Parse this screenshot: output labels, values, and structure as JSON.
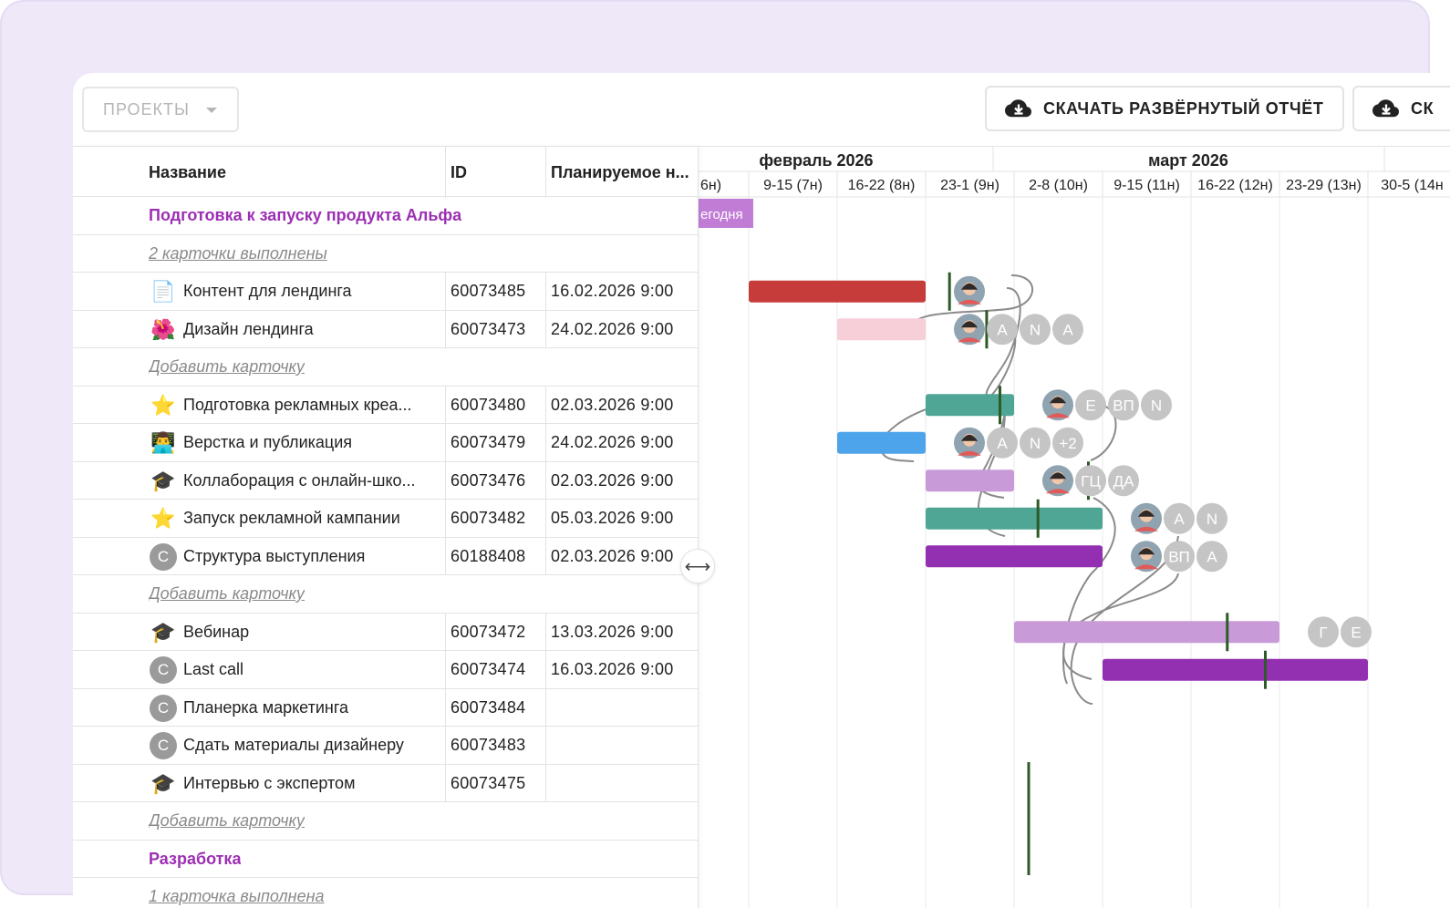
{
  "toolbar": {
    "projects_label": "ПРОЕКТЫ",
    "download_full_label": "СКАЧАТЬ РАЗВЁРНУТЫЙ ОТЧЁТ",
    "download_short_label": "СК"
  },
  "table": {
    "headers": {
      "name": "Название",
      "id": "ID",
      "planned": "Планируемое н..."
    },
    "group1_title": "Подготовка к запуску продукта Альфа",
    "group1_done": "2 карточки выполнены",
    "rows1": [
      {
        "icon": "document-icon",
        "glyph": "📄",
        "name": "Контент для лендинга",
        "id": "60073485",
        "date": "16.02.2026 9:00"
      },
      {
        "icon": "flower-icon",
        "glyph": "🌺",
        "name": "Дизайн лендинга",
        "id": "60073473",
        "date": "24.02.2026 9:00"
      }
    ],
    "add_card": "Добавить карточку",
    "rows2": [
      {
        "icon": "star-icon",
        "glyph": "⭐",
        "name": "Подготовка рекламных креа...",
        "id": "60073480",
        "date": "02.03.2026 9:00"
      },
      {
        "icon": "developer-icon",
        "glyph": "👨‍💻",
        "name": "Верстка и публикация",
        "id": "60073479",
        "date": "24.02.2026 9:00"
      },
      {
        "icon": "graduation-cap-icon",
        "glyph": "🎓",
        "name": "Коллаборация с онлайн-шко...",
        "id": "60073476",
        "date": "02.03.2026 9:00"
      },
      {
        "icon": "star-icon",
        "glyph": "⭐",
        "name": "Запуск рекламной кампании",
        "id": "60073482",
        "date": "05.03.2026 9:00"
      },
      {
        "icon": "letter-c-icon",
        "glyph": "C",
        "name": "Структура выступления",
        "id": "60188408",
        "date": "02.03.2026 9:00"
      }
    ],
    "rows3": [
      {
        "icon": "graduation-cap-icon",
        "glyph": "🎓",
        "name": "Вебинар",
        "id": "60073472",
        "date": "13.03.2026 9:00"
      },
      {
        "icon": "letter-c-icon",
        "glyph": "C",
        "name": "Last call",
        "id": "60073474",
        "date": "16.03.2026 9:00"
      },
      {
        "icon": "letter-c-icon",
        "glyph": "C",
        "name": "Планерка маркетинга",
        "id": "60073484",
        "date": ""
      },
      {
        "icon": "letter-c-icon",
        "glyph": "C",
        "name": "Сдать материалы дизайнеру",
        "id": "60073483",
        "date": ""
      },
      {
        "icon": "graduation-cap-icon",
        "glyph": "🎓",
        "name": "Интервью с экспертом",
        "id": "60073475",
        "date": ""
      }
    ],
    "group2_title": "Разработка",
    "group2_done": "1 карточка выполнена"
  },
  "gantt": {
    "months": [
      "февраль 2026",
      "март 2026"
    ],
    "weeks": [
      "6н)",
      "9-15 (7н)",
      "16-22 (8н)",
      "23-1 (9н)",
      "2-8 (10н)",
      "9-15 (11н)",
      "16-22 (12н)",
      "23-29 (13н)",
      "30-5 (14н"
    ],
    "today_label": "егодня",
    "bars": [
      {
        "task": "Контент для лендинга",
        "start_week": 1.0,
        "end_week": 3.0,
        "color": "#c63c3a",
        "marker_week": 3.27,
        "avatars": [
          "photo"
        ]
      },
      {
        "task": "Дизайн лендинга",
        "start_week": 2.0,
        "end_week": 3.0,
        "color": "#f7cfd9",
        "marker_week": 3.69,
        "avatars": [
          "photo",
          "A",
          "N",
          "A"
        ]
      },
      {
        "task": "Подготовка рекламных креа...",
        "start_week": 3.0,
        "end_week": 4.0,
        "color": "#4fa695",
        "marker_week": 3.84,
        "avatars": [
          "photo",
          "E",
          "ВП",
          "N"
        ]
      },
      {
        "task": "Верстка и публикация",
        "start_week": 2.0,
        "end_week": 3.0,
        "color": "#4ea4ea",
        "marker_week": null,
        "avatars": [
          "photo",
          "A",
          "N",
          "+2"
        ]
      },
      {
        "task": "Коллаборация с онлайн-шко...",
        "start_week": 3.0,
        "end_week": 4.0,
        "color": "#c89ad8",
        "marker_week": 4.84,
        "avatars": [
          "photo",
          "ГЦ",
          "ДА"
        ]
      },
      {
        "task": "Запуск рекламной кампании",
        "start_week": 3.0,
        "end_week": 5.0,
        "color": "#4fa695",
        "marker_week": 4.27,
        "avatars": [
          "photo",
          "A",
          "N"
        ]
      },
      {
        "task": "Структура выступления",
        "start_week": 3.0,
        "end_week": 5.0,
        "color": "#9330b1",
        "marker_week": null,
        "avatars": [
          "photo",
          "ВП",
          "A"
        ]
      },
      {
        "task": "Вебинар",
        "start_week": 4.0,
        "end_week": 7.0,
        "color": "#c89ad8",
        "marker_week": 6.41,
        "avatars": [
          "Г",
          "Е"
        ]
      },
      {
        "task": "Last call",
        "start_week": 5.0,
        "end_week": 8.0,
        "color": "#9330b1",
        "marker_week": 6.84,
        "avatars": []
      }
    ],
    "colors": {
      "link": "#8a8a8a",
      "marker": "#2d5a27",
      "today": "#c17dd6",
      "avatar": "#c5c5c5"
    }
  }
}
